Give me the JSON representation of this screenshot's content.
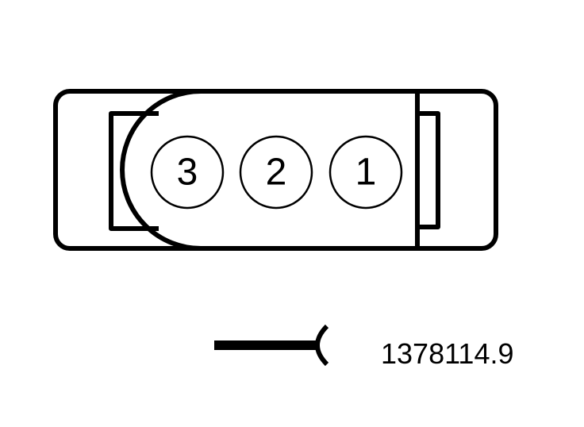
{
  "connector": {
    "pins": [
      {
        "number": "3"
      },
      {
        "number": "2"
      },
      {
        "number": "1"
      }
    ]
  },
  "reference_number": "1378114.9",
  "colors": {
    "line": "#000000",
    "background": "#ffffff"
  }
}
